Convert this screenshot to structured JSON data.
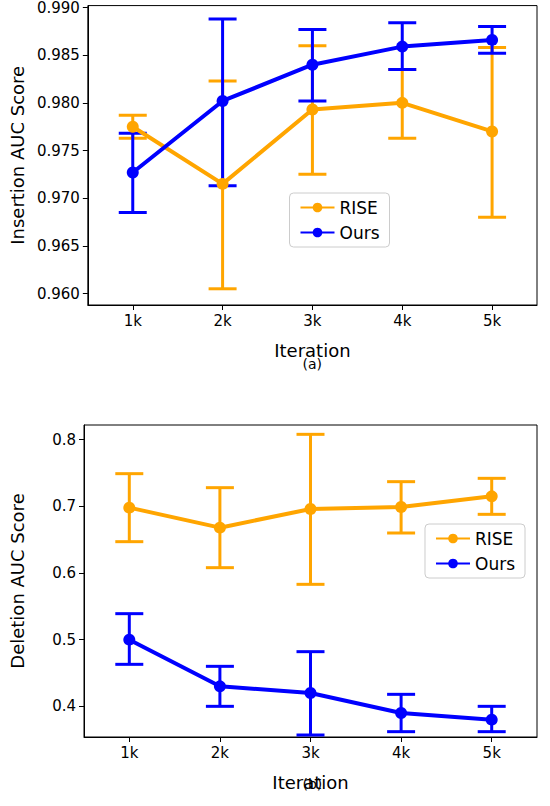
{
  "chart_data": [
    {
      "type": "line",
      "caption": "(a)",
      "x_label": "Iteration",
      "y_label": "Insertion AUC Score",
      "categories": [
        "1k",
        "2k",
        "3k",
        "4k",
        "5k"
      ],
      "ylim": [
        0.9588,
        0.9902
      ],
      "yticks": [
        {
          "value": 0.96,
          "label": "0.960"
        },
        {
          "value": 0.965,
          "label": "0.965"
        },
        {
          "value": 0.97,
          "label": "0.970"
        },
        {
          "value": 0.975,
          "label": "0.975"
        },
        {
          "value": 0.98,
          "label": "0.980"
        },
        {
          "value": 0.985,
          "label": "0.985"
        },
        {
          "value": 0.99,
          "label": "0.990"
        }
      ],
      "grid": false,
      "legend": "lower center",
      "series": [
        {
          "name": "RISE",
          "color": "#ffa500",
          "marker": "circle",
          "values": [
            0.9775,
            0.9715,
            0.9793,
            0.98,
            0.977
          ],
          "error_low": [
            0.9763,
            0.9605,
            0.9725,
            0.9763,
            0.968
          ],
          "error_high": [
            0.9787,
            0.9823,
            0.986,
            0.9835,
            0.9858
          ]
        },
        {
          "name": "Ours",
          "color": "#0000ff",
          "marker": "circle",
          "values": [
            0.9727,
            0.9802,
            0.984,
            0.9859,
            0.9866
          ],
          "error_low": [
            0.9685,
            0.9713,
            0.9802,
            0.9835,
            0.9852
          ],
          "error_high": [
            0.9768,
            0.9888,
            0.9877,
            0.9884,
            0.988
          ]
        }
      ]
    },
    {
      "type": "line",
      "caption": "(b)",
      "x_label": "Iteration",
      "y_label": "Deletion AUC Score",
      "categories": [
        "1k",
        "2k",
        "3k",
        "4k",
        "5k"
      ],
      "ylim": [
        0.354,
        0.822
      ],
      "yticks": [
        0.4,
        0.5,
        0.6,
        0.7,
        0.8
      ],
      "grid": false,
      "legend": "center right",
      "series": [
        {
          "name": "RISE",
          "color": "#ffa500",
          "marker": "circle",
          "values": [
            0.698,
            0.668,
            0.696,
            0.699,
            0.715
          ],
          "error_low": [
            0.647,
            0.608,
            0.583,
            0.66,
            0.688
          ],
          "error_high": [
            0.749,
            0.728,
            0.808,
            0.737,
            0.742
          ]
        },
        {
          "name": "Ours",
          "color": "#0000ff",
          "marker": "circle",
          "values": [
            0.5,
            0.43,
            0.42,
            0.39,
            0.38
          ],
          "error_low": [
            0.463,
            0.4,
            0.357,
            0.362,
            0.362
          ],
          "error_high": [
            0.539,
            0.46,
            0.482,
            0.418,
            0.4
          ]
        }
      ]
    }
  ]
}
